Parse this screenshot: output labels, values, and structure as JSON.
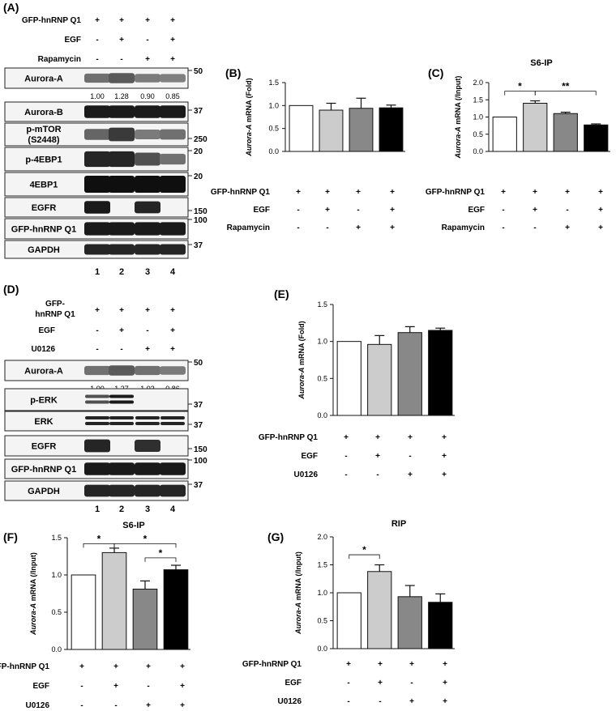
{
  "panelA": {
    "letter": "(A)",
    "treatments": [
      {
        "label": "GFP-hnRNP Q1",
        "signs": [
          "+",
          "+",
          "+",
          "+"
        ]
      },
      {
        "label": "EGF",
        "signs": [
          "-",
          "+",
          "-",
          "+"
        ]
      },
      {
        "label": "Rapamycin",
        "signs": [
          "-",
          "-",
          "+",
          "+"
        ]
      }
    ],
    "blots": [
      {
        "name": "Aurora-A",
        "mw": "50",
        "quant": [
          "1.00",
          "1.28",
          "0.90",
          "0.85"
        ],
        "intensity": [
          0.55,
          0.65,
          0.5,
          0.48
        ],
        "bands": 1
      },
      {
        "name": "Aurora-B",
        "mw": "37",
        "intensity": [
          0.95,
          0.95,
          0.95,
          0.95
        ],
        "bands": 1
      },
      {
        "name": "p-mTOR\n(S2448)",
        "name_lines": [
          "p-mTOR",
          "(S2448)"
        ],
        "mw": "250",
        "intensity": [
          0.6,
          0.8,
          0.5,
          0.55
        ],
        "bands": 1
      },
      {
        "name": "p-4EBP1",
        "mw": "20",
        "intensity": [
          0.9,
          0.9,
          0.7,
          0.55
        ],
        "bands": 1
      },
      {
        "name": "4EBP1",
        "mw": "20",
        "intensity": [
          1.0,
          1.0,
          1.0,
          1.0
        ],
        "bands": 1
      },
      {
        "name": "EGFR",
        "mw": "150",
        "intensity": [
          0.95,
          0.0,
          0.9,
          0.0
        ],
        "bands": 1
      },
      {
        "name": "GFP-hnRNP Q1",
        "mw": "100",
        "intensity": [
          0.95,
          0.95,
          0.95,
          0.95
        ],
        "bands": 1
      },
      {
        "name": "GAPDH",
        "mw": "37",
        "intensity": [
          0.9,
          0.9,
          0.9,
          0.9
        ],
        "bands": 1
      }
    ],
    "lanes": [
      "1",
      "2",
      "3",
      "4"
    ]
  },
  "panelD": {
    "letter": "(D)",
    "treatments": [
      {
        "label": "GFP-\nhnRNP Q1",
        "label_lines": [
          "GFP-",
          "hnRNP Q1"
        ],
        "signs": [
          "+",
          "+",
          "+",
          "+"
        ]
      },
      {
        "label": "EGF",
        "signs": [
          "-",
          "+",
          "-",
          "+"
        ]
      },
      {
        "label": "U0126",
        "signs": [
          "-",
          "-",
          "+",
          "+"
        ]
      }
    ],
    "blots": [
      {
        "name": "Aurora-A",
        "mw": "50",
        "quant": [
          "1.00",
          "1.27",
          "1.03",
          "0.86"
        ],
        "intensity": [
          0.55,
          0.65,
          0.55,
          0.5
        ],
        "bands": 1
      },
      {
        "name": "p-ERK",
        "mw": "37",
        "intensity": [
          0.7,
          0.95,
          0.0,
          0.0
        ],
        "bands": 2
      },
      {
        "name": "ERK",
        "mw": "37",
        "intensity": [
          0.9,
          0.9,
          0.9,
          0.9
        ],
        "bands": 2
      },
      {
        "name": "EGFR",
        "mw": "150",
        "intensity": [
          0.9,
          0.0,
          0.85,
          0.0
        ],
        "bands": 1
      },
      {
        "name": "GFP-hnRNP Q1",
        "mw": "100",
        "intensity": [
          0.95,
          0.95,
          0.95,
          0.95
        ],
        "bands": 1
      },
      {
        "name": "GAPDH",
        "mw": "37",
        "intensity": [
          0.9,
          0.9,
          0.9,
          0.9
        ],
        "bands": 1
      }
    ],
    "lanes": [
      "1",
      "2",
      "3",
      "4"
    ]
  },
  "chart_data": [
    {
      "id": "B",
      "letter": "(B)",
      "type": "bar",
      "title": "",
      "ylabel_italic": "Aurora-A",
      "ylabel_rest": " mRNA (Fold)",
      "ylim": [
        0,
        1.5
      ],
      "yticks": [
        "0.0",
        "0.5",
        "1.0",
        "1.5"
      ],
      "values": [
        1.0,
        0.9,
        0.94,
        0.95
      ],
      "errors": [
        0,
        0.15,
        0.22,
        0.06
      ],
      "colors": [
        "#ffffff",
        "#cccccc",
        "#888888",
        "#000000"
      ],
      "rows": [
        {
          "label": "GFP-hnRNP Q1",
          "signs": [
            "+",
            "+",
            "+",
            "+"
          ]
        },
        {
          "label": "EGF",
          "signs": [
            "-",
            "+",
            "-",
            "+"
          ]
        },
        {
          "label": "Rapamycin",
          "signs": [
            "-",
            "-",
            "+",
            "+"
          ]
        }
      ],
      "sig": []
    },
    {
      "id": "C",
      "letter": "(C)",
      "type": "bar",
      "title": "S6-IP",
      "ylabel_italic": "Aurora-A",
      "ylabel_rest": " mRNA (/Input)",
      "ylim": [
        0,
        2.0
      ],
      "yticks": [
        "0.0",
        "0.5",
        "1.0",
        "1.5",
        "2.0"
      ],
      "values": [
        1.0,
        1.4,
        1.1,
        0.77
      ],
      "errors": [
        0,
        0.07,
        0.04,
        0.03
      ],
      "colors": [
        "#ffffff",
        "#cccccc",
        "#888888",
        "#000000"
      ],
      "rows": [
        {
          "label": "GFP-hnRNP Q1",
          "signs": [
            "+",
            "+",
            "+",
            "+"
          ]
        },
        {
          "label": "EGF",
          "signs": [
            "-",
            "+",
            "-",
            "+"
          ]
        },
        {
          "label": "Rapamycin",
          "signs": [
            "-",
            "-",
            "+",
            "+"
          ]
        }
      ],
      "sig": [
        {
          "from": 0,
          "to": 1,
          "label": "*",
          "level": 1.75
        },
        {
          "from": 1,
          "to": 3,
          "label": "**",
          "level": 1.75
        }
      ]
    },
    {
      "id": "E",
      "letter": "(E)",
      "type": "bar",
      "title": "",
      "ylabel_italic": "Aurora-A",
      "ylabel_rest": " mRNA (Fold)",
      "ylim": [
        0,
        1.5
      ],
      "yticks": [
        "0.0",
        "0.5",
        "1.0",
        "1.5"
      ],
      "values": [
        1.0,
        0.96,
        1.12,
        1.15
      ],
      "errors": [
        0,
        0.12,
        0.08,
        0.03
      ],
      "colors": [
        "#ffffff",
        "#cccccc",
        "#888888",
        "#000000"
      ],
      "rows": [
        {
          "label": "GFP-hnRNP Q1",
          "signs": [
            "+",
            "+",
            "+",
            "+"
          ]
        },
        {
          "label": "EGF",
          "signs": [
            "-",
            "+",
            "-",
            "+"
          ]
        },
        {
          "label": "U0126",
          "signs": [
            "-",
            "-",
            "+",
            "+"
          ]
        }
      ],
      "sig": []
    },
    {
      "id": "F",
      "letter": "(F)",
      "type": "bar",
      "title": "S6-IP",
      "ylabel_italic": "Aurora-A",
      "ylabel_rest": " mRNA (/Input)",
      "ylim": [
        0,
        1.5
      ],
      "yticks": [
        "0.0",
        "0.5",
        "1.0",
        "1.5"
      ],
      "values": [
        1.0,
        1.3,
        0.81,
        1.07
      ],
      "errors": [
        0,
        0.06,
        0.11,
        0.06
      ],
      "colors": [
        "#ffffff",
        "#cccccc",
        "#888888",
        "#000000"
      ],
      "rows": [
        {
          "label": "GFP-hnRNP Q1",
          "signs": [
            "+",
            "+",
            "+",
            "+"
          ]
        },
        {
          "label": "EGF",
          "signs": [
            "-",
            "+",
            "-",
            "+"
          ]
        },
        {
          "label": "U0126",
          "signs": [
            "-",
            "-",
            "+",
            "+"
          ]
        }
      ],
      "sig": [
        {
          "from": 0,
          "to": 1,
          "label": "*",
          "level": 1.42
        },
        {
          "from": 1,
          "to": 3,
          "label": "*",
          "level": 1.42
        },
        {
          "from": 2,
          "to": 3,
          "label": "*",
          "level": 1.23
        }
      ]
    },
    {
      "id": "G",
      "letter": "(G)",
      "type": "bar",
      "title": "RIP",
      "ylabel_italic": "Aurora-A",
      "ylabel_rest": " mRNA (/Input)",
      "ylim": [
        0,
        2.0
      ],
      "yticks": [
        "0.0",
        "0.5",
        "1.0",
        "1.5",
        "2.0"
      ],
      "values": [
        1.0,
        1.38,
        0.93,
        0.83
      ],
      "errors": [
        0,
        0.12,
        0.2,
        0.15
      ],
      "colors": [
        "#ffffff",
        "#cccccc",
        "#888888",
        "#000000"
      ],
      "rows": [
        {
          "label": "GFP-hnRNP Q1",
          "signs": [
            "+",
            "+",
            "+",
            "+"
          ]
        },
        {
          "label": "EGF",
          "signs": [
            "-",
            "+",
            "-",
            "+"
          ]
        },
        {
          "label": "U0126",
          "signs": [
            "-",
            "-",
            "+",
            "+"
          ]
        }
      ],
      "sig": [
        {
          "from": 0,
          "to": 1,
          "label": "*",
          "level": 1.68
        }
      ]
    }
  ]
}
